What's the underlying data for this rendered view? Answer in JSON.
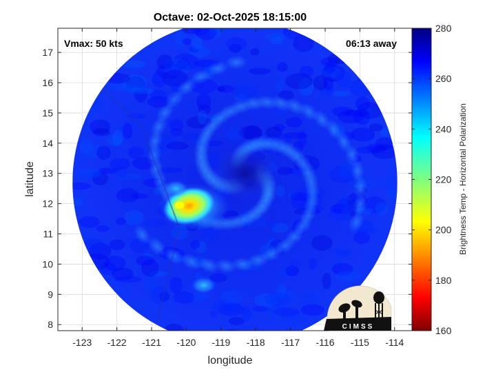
{
  "chart_data": {
    "type": "heatmap",
    "title": "Octave: 02-Oct-2025 18:15:00",
    "xlabel": "longitude",
    "ylabel": "latitude",
    "xlim": [
      -123.7,
      -113.5
    ],
    "ylim": [
      7.8,
      17.8
    ],
    "xticks": [
      -123,
      -122,
      -121,
      -120,
      -119,
      -118,
      -117,
      -116,
      -115,
      -114
    ],
    "yticks": [
      8,
      9,
      10,
      11,
      12,
      13,
      14,
      15,
      16,
      17
    ],
    "grid": true,
    "annotations": {
      "top_left": "Vmax: 50 kts",
      "top_right": "06:13 away"
    },
    "colorbar": {
      "label": "Brightness Temp - Horizontal Polarization",
      "range": [
        160,
        280
      ],
      "ticks": [
        160,
        180,
        200,
        220,
        240,
        260,
        280
      ],
      "colormap": "jet"
    },
    "swath": {
      "center_lon": -118.6,
      "center_lat": 12.7,
      "radius_deg": 5.0
    },
    "storm_center": {
      "lon": -118.3,
      "lat": 13.0,
      "value": 268
    },
    "features": [
      {
        "name": "cold convection core",
        "lon": -120.0,
        "lat": 11.9,
        "value": 205
      },
      {
        "name": "convection band",
        "lon": -120.3,
        "lat": 12.5,
        "value": 238
      },
      {
        "name": "southern convection",
        "lon": -119.5,
        "lat": 9.3,
        "value": 242
      }
    ],
    "background_value": 262
  },
  "logo": {
    "text": "CIMSS"
  },
  "colors": {
    "frame": "#262626",
    "grid": "#d9d9d9",
    "background": "#ffffff"
  }
}
